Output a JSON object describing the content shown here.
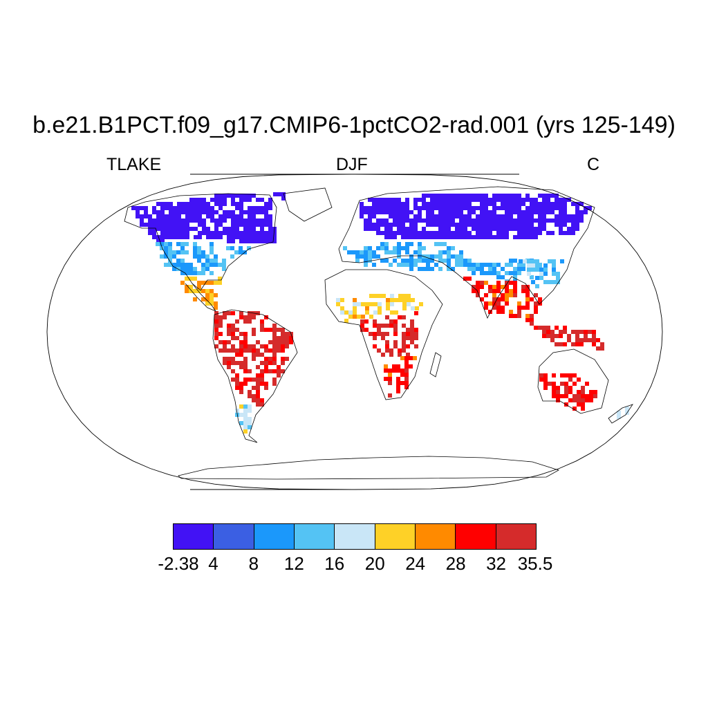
{
  "header": {
    "title": "b.e21.B1PCT.f09_g17.CMIP6-1pctCO2-rad.001 (yrs 125-149)",
    "left_label": "TLAKE",
    "center_label": "DJF",
    "right_label": "C"
  },
  "map": {
    "projection": "robinson",
    "field": "TLAKE",
    "season": "DJF",
    "regions": [
      {
        "name": "north-america-arctic",
        "value": -2.0
      },
      {
        "name": "greenland-rim",
        "value": -2.0
      },
      {
        "name": "usa-south",
        "value": 12.0
      },
      {
        "name": "mexico-caribbean",
        "value": 24.0
      },
      {
        "name": "south-america-tropics",
        "value": 33.0
      },
      {
        "name": "patagonia",
        "value": 18.0
      },
      {
        "name": "sahel",
        "value": 22.0
      },
      {
        "name": "central-africa",
        "value": 33.0
      },
      {
        "name": "southern-africa",
        "value": 30.0
      },
      {
        "name": "europe-russia",
        "value": -2.0
      },
      {
        "name": "mediterranean-central-asia",
        "value": 12.0
      },
      {
        "name": "india-se-asia",
        "value": 30.0
      },
      {
        "name": "china",
        "value": 14.0
      },
      {
        "name": "indonesia",
        "value": 33.0
      },
      {
        "name": "australia",
        "value": 31.0
      },
      {
        "name": "new-zealand",
        "value": 16.0
      }
    ]
  },
  "colorbar": {
    "colors": [
      "#4212f5",
      "#3b5fe3",
      "#1b98fb",
      "#54c3f4",
      "#c9e6f7",
      "#fed127",
      "#ff8a00",
      "#ff0000",
      "#d52b2b"
    ],
    "labels": [
      "-2.38",
      "4",
      "8",
      "12",
      "16",
      "20",
      "24",
      "28",
      "32",
      "35.5"
    ]
  }
}
